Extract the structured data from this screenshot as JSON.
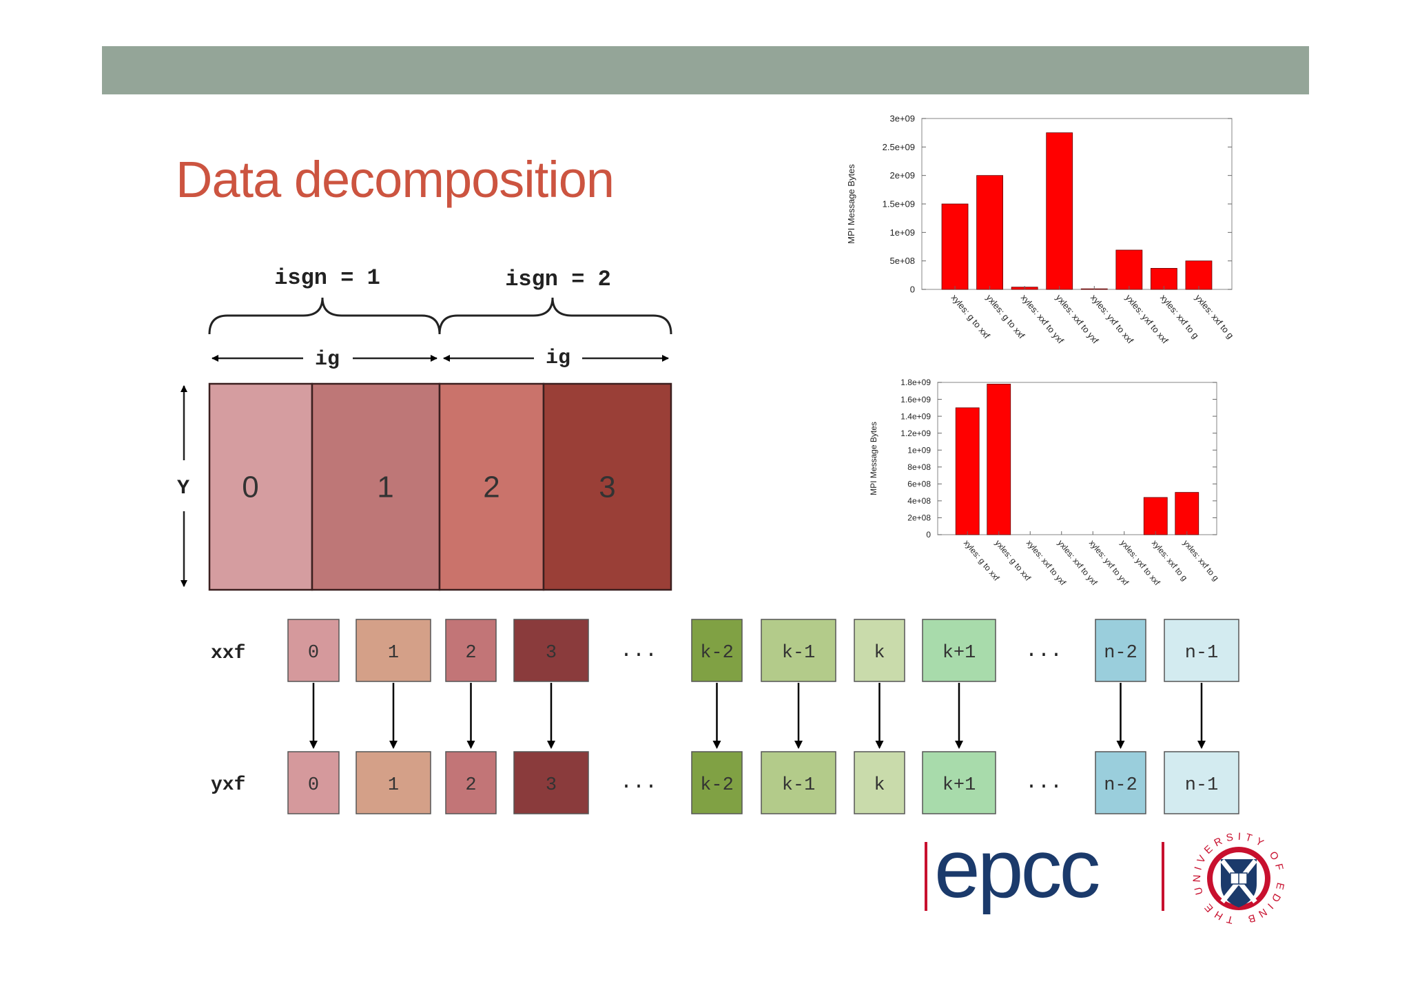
{
  "slide": {
    "title": "Data decomposition"
  },
  "colors": {
    "header_bar": "#94a598",
    "title": "#cc5440",
    "bar": "#ff0000",
    "logo_blue": "#1b3a6b",
    "logo_red": "#c8102e"
  },
  "decomposition": {
    "isgn_labels": [
      "isgn = 1",
      "isgn = 2"
    ],
    "ig_label": "ig",
    "y_label": "Y",
    "blocks": [
      {
        "label": "0",
        "color": "#d59da0"
      },
      {
        "label": "1",
        "color": "#be7777"
      },
      {
        "label": "2",
        "color": "#ca736b"
      },
      {
        "label": "3",
        "color": "#9a3f37"
      }
    ]
  },
  "transpose": {
    "row_labels": [
      "xxf",
      "yxf"
    ],
    "ellipsis": "...",
    "cells": [
      {
        "label": "0",
        "color": "#d5999c"
      },
      {
        "label": "1",
        "color": "#d4a088"
      },
      {
        "label": "2",
        "color": "#c27577"
      },
      {
        "label": "3",
        "color": "#8a3b3c"
      },
      {
        "label": "k-2",
        "color": "#80a144"
      },
      {
        "label": "k-1",
        "color": "#b3cb8a"
      },
      {
        "label": "k",
        "color": "#c9dbab"
      },
      {
        "label": "k+1",
        "color": "#a8dbab"
      },
      {
        "label": "n-2",
        "color": "#9acedc"
      },
      {
        "label": "n-1",
        "color": "#d3ebf0"
      }
    ]
  },
  "chart_data": [
    {
      "type": "bar",
      "ylabel": "MPI Message Bytes",
      "categories": [
        "xyles: g to xxf",
        "yxles: g to xxf",
        "xyles: xxf to yxf",
        "yxles: xxf to yxf",
        "xyles: yxf to xxf",
        "yxles: yxf to xxf",
        "xyles: xxf to g",
        "yxles: xxf to g"
      ],
      "values": [
        1500000000,
        2000000000,
        40000000,
        2750000000,
        10000000,
        690000000,
        370000000,
        500000000
      ],
      "ylim": [
        0,
        3000000000
      ],
      "yticks": [
        "0",
        "5e+08",
        "1e+09",
        "1.5e+09",
        "2e+09",
        "2.5e+09",
        "3e+09"
      ],
      "grid": false
    },
    {
      "type": "bar",
      "ylabel": "MPI Message Bytes",
      "categories": [
        "xyles: g to xxf",
        "yxles: g to xxf",
        "xyles: xxf to yxf",
        "yxles: xxf to yxf",
        "xyles: yxf to yxf",
        "yxles: yxf to xxf",
        "xyles: xxf to g",
        "yxles: xxf to g"
      ],
      "values": [
        1500000000,
        1780000000,
        0,
        0,
        0,
        0,
        440000000,
        500000000
      ],
      "ylim": [
        0,
        1800000000
      ],
      "yticks": [
        "0",
        "2e+08",
        "4e+08",
        "6e+08",
        "8e+08",
        "1e+09",
        "1.2e+09",
        "1.4e+09",
        "1.6e+09",
        "1.8e+09"
      ],
      "grid": false
    }
  ],
  "logos": {
    "epcc": "epcc",
    "seal_text": "THE UNIVERSITY OF EDINBURGH"
  }
}
